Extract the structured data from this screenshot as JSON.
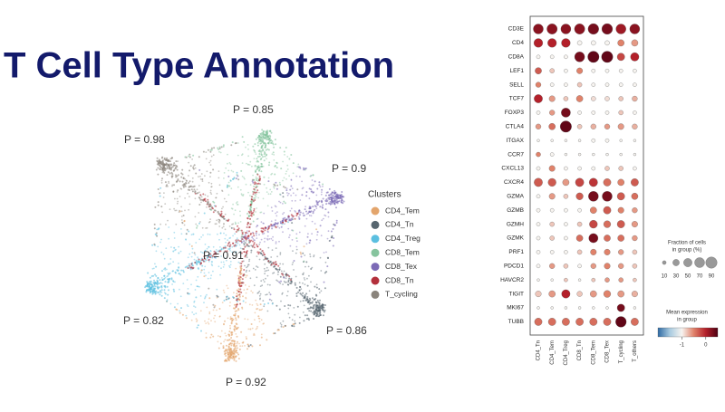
{
  "title": "T Cell Type Annotation",
  "embedding": {
    "p_labels": [
      "P = 0.98",
      "P = 0.85",
      "P = 0.9",
      "P = 0.86",
      "P = 0.92",
      "P = 0.82",
      "P = 0.91"
    ],
    "legend_title": "Clusters",
    "clusters": [
      {
        "name": "CD4_Tem",
        "color": "#e3a56c"
      },
      {
        "name": "CD4_Tn",
        "color": "#56666f"
      },
      {
        "name": "CD4_Treg",
        "color": "#5bbfe0"
      },
      {
        "name": "CD8_Tem",
        "color": "#86c49e"
      },
      {
        "name": "CD8_Tex",
        "color": "#7c6ab6"
      },
      {
        "name": "CD8_Tn",
        "color": "#b3303b"
      },
      {
        "name": "T_cycling",
        "color": "#8a847c"
      }
    ]
  },
  "chart_data": {
    "type": "dotplot",
    "genes": [
      "CD3E",
      "CD4",
      "CD8A",
      "LEF1",
      "SELL",
      "TCF7",
      "FOXP3",
      "CTLA4",
      "ITGAX",
      "CCR7",
      "CXCL13",
      "CXCR4",
      "GZMA",
      "GZMB",
      "GZMH",
      "GZMK",
      "PRF1",
      "PDCD1",
      "HAVCR2",
      "TIGIT",
      "MKI67",
      "TUBB"
    ],
    "categories": [
      "CD4_Tn",
      "CD4_Tem",
      "CD4_Treg",
      "CD8_Tn",
      "CD8_Tem",
      "CD8_Tex",
      "T_cycling",
      "T_others"
    ],
    "fraction": [
      [
        70,
        75,
        70,
        75,
        80,
        80,
        70,
        70
      ],
      [
        55,
        55,
        55,
        15,
        15,
        15,
        30,
        30
      ],
      [
        10,
        10,
        10,
        70,
        90,
        90,
        40,
        50
      ],
      [
        30,
        15,
        10,
        25,
        10,
        10,
        10,
        10
      ],
      [
        20,
        10,
        10,
        15,
        10,
        10,
        10,
        10
      ],
      [
        50,
        25,
        15,
        30,
        15,
        15,
        15,
        20
      ],
      [
        10,
        20,
        60,
        10,
        10,
        10,
        15,
        10
      ],
      [
        20,
        30,
        90,
        15,
        20,
        20,
        25,
        20
      ],
      [
        5,
        5,
        5,
        5,
        10,
        10,
        5,
        5
      ],
      [
        15,
        10,
        5,
        5,
        5,
        5,
        5,
        5
      ],
      [
        10,
        25,
        10,
        10,
        10,
        15,
        15,
        10
      ],
      [
        50,
        45,
        30,
        50,
        50,
        40,
        30,
        40
      ],
      [
        10,
        25,
        15,
        35,
        70,
        70,
        40,
        30
      ],
      [
        10,
        10,
        10,
        10,
        30,
        40,
        25,
        20
      ],
      [
        10,
        15,
        10,
        15,
        45,
        35,
        40,
        25
      ],
      [
        10,
        15,
        10,
        30,
        60,
        30,
        30,
        20
      ],
      [
        10,
        10,
        10,
        15,
        25,
        25,
        20,
        15
      ],
      [
        10,
        20,
        15,
        10,
        20,
        25,
        20,
        15
      ],
      [
        5,
        5,
        10,
        5,
        10,
        15,
        15,
        10
      ],
      [
        25,
        30,
        50,
        20,
        30,
        35,
        30,
        25
      ],
      [
        5,
        5,
        5,
        5,
        5,
        5,
        40,
        5
      ],
      [
        40,
        40,
        40,
        40,
        40,
        40,
        80,
        40
      ]
    ],
    "expression": [
      [
        0.2,
        0.2,
        0.2,
        0.2,
        0.3,
        0.3,
        0.1,
        0.2
      ],
      [
        0,
        0,
        0,
        -1,
        -1,
        -1,
        -0.5,
        -0.6
      ],
      [
        -1,
        -1,
        -1,
        0.3,
        0.4,
        0.4,
        -0.2,
        0
      ],
      [
        -0.3,
        -0.8,
        -1,
        -0.5,
        -1,
        -1,
        -1,
        -1
      ],
      [
        -0.5,
        -1,
        -1,
        -0.8,
        -1,
        -1,
        -1,
        -1
      ],
      [
        0,
        -0.6,
        -0.8,
        -0.5,
        -0.9,
        -0.9,
        -0.8,
        -0.7
      ],
      [
        -1,
        -0.6,
        0.3,
        -1,
        -1,
        -1,
        -0.8,
        -1
      ],
      [
        -0.6,
        -0.4,
        0.4,
        -0.8,
        -0.7,
        -0.6,
        -0.6,
        -0.7
      ],
      [
        -1,
        -1,
        -1,
        -1,
        -1,
        -1,
        -1,
        -1
      ],
      [
        -0.5,
        -1,
        -1,
        -1,
        -1,
        -1,
        -1,
        -1
      ],
      [
        -1,
        -0.5,
        -1,
        -1,
        -1,
        -0.8,
        -0.8,
        -1
      ],
      [
        -0.3,
        -0.3,
        -0.6,
        -0.2,
        -0.1,
        -0.4,
        -0.5,
        -0.3
      ],
      [
        -1,
        -0.6,
        -0.8,
        -0.3,
        0.3,
        0.3,
        -0.3,
        -0.4
      ],
      [
        -1,
        -1,
        -1,
        -1,
        -0.5,
        -0.3,
        -0.5,
        -0.6
      ],
      [
        -1,
        -0.8,
        -1,
        -0.8,
        -0.2,
        -0.4,
        -0.3,
        -0.6
      ],
      [
        -1,
        -0.8,
        -1,
        -0.4,
        0.3,
        -0.4,
        -0.4,
        -0.6
      ],
      [
        -1,
        -1,
        -1,
        -0.8,
        -0.5,
        -0.5,
        -0.6,
        -0.8
      ],
      [
        -1,
        -0.6,
        -0.8,
        -1,
        -0.6,
        -0.5,
        -0.6,
        -0.8
      ],
      [
        -1,
        -1,
        -0.8,
        -1,
        -0.8,
        -0.6,
        -0.6,
        -0.8
      ],
      [
        -0.8,
        -0.6,
        0,
        -0.8,
        -0.6,
        -0.5,
        -0.6,
        -0.7
      ],
      [
        -1,
        -1,
        -1,
        -1,
        -1,
        -1,
        0.3,
        -1
      ],
      [
        -0.4,
        -0.4,
        -0.4,
        -0.4,
        -0.4,
        -0.4,
        0.4,
        -0.4
      ]
    ],
    "size_legend": {
      "title": [
        "Fraction of cells",
        "in group (%)"
      ],
      "values": [
        10,
        30,
        50,
        70,
        90
      ]
    },
    "color_legend": {
      "title": [
        "Mean expression",
        "in group"
      ],
      "clim": [
        -2,
        0.5
      ],
      "ticks": [
        -1,
        0
      ],
      "colors": [
        "#2f6aa3",
        "#a9cbe0",
        "#f7f4f0",
        "#e0826a",
        "#b3202a",
        "#4d0012"
      ]
    }
  }
}
